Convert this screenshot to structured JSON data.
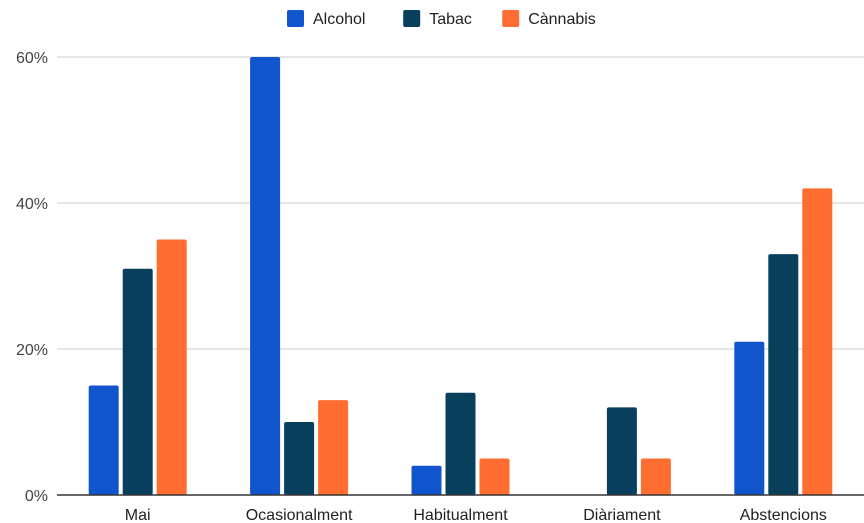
{
  "chart_data": {
    "type": "bar",
    "title": "",
    "xlabel": "",
    "ylabel": "",
    "categories": [
      "Mai",
      "Ocasionalment",
      "Habitualment",
      "Diàriament",
      "Abstencions"
    ],
    "series": [
      {
        "name": "Alcohol",
        "color": "#1155cc",
        "values": [
          15,
          60,
          4,
          0,
          21
        ]
      },
      {
        "name": "Tabac",
        "color": "#073f5c",
        "values": [
          31,
          10,
          14,
          12,
          33
        ]
      },
      {
        "name": "Cànnabis",
        "color": "#ff6d31",
        "values": [
          35,
          13,
          5,
          5,
          42
        ]
      }
    ],
    "ylim": [
      0,
      60
    ],
    "yticks": [
      {
        "value": 0,
        "label": "0%"
      },
      {
        "value": 20,
        "label": "20%"
      },
      {
        "value": 40,
        "label": "40%"
      },
      {
        "value": 60,
        "label": "60%"
      }
    ],
    "grid": true,
    "legend_position": "top-center"
  }
}
